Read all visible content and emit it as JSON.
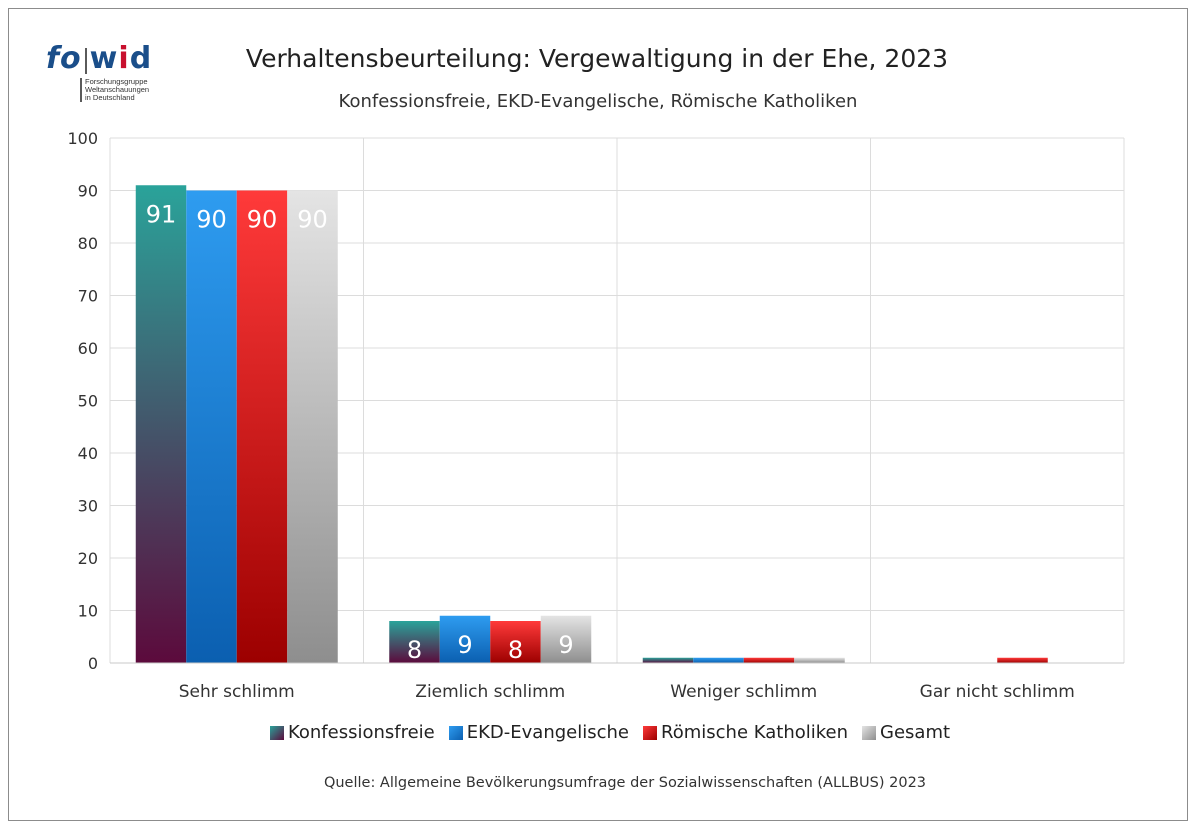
{
  "logo": {
    "wordmark_fo": "fo",
    "wordmark_w": "w",
    "wordmark_i": "i",
    "wordmark_d": "d",
    "tagline_1": "Forschungsgruppe",
    "tagline_2": "Weltanschauungen",
    "tagline_3": "in Deutschland"
  },
  "source_text": "Quelle: Allgemeine Bevölkerungsumfrage der Sozialwissenschaften (ALLBUS) 2023",
  "colors": {
    "konfessionsfreie_top": "#2aa39a",
    "konfessionsfreie_bottom": "#5c0a3c",
    "ekd_top": "#2e9cf0",
    "ekd_bottom": "#0b5fb0",
    "rk_top": "#ff3a3a",
    "rk_bottom": "#9c0000",
    "gesamt_top": "#e4e4e4",
    "gesamt_bottom": "#8e8e8e",
    "grid": "#dcdcdc"
  },
  "chart_data": {
    "type": "bar",
    "title": "Verhaltensbeurteilung: Vergewaltigung in der Ehe, 2023",
    "subtitle": "Konfessionsfreie, EKD-Evangelische, Römische Katholiken",
    "categories": [
      "Sehr schlimm",
      "Ziemlich schlimm",
      "Weniger schlimm",
      "Gar nicht schlimm"
    ],
    "series": [
      {
        "name": "Konfessionsfreie",
        "values": [
          91,
          8,
          1,
          0
        ],
        "labels": [
          "91",
          "8",
          "",
          ""
        ]
      },
      {
        "name": "EKD-Evangelische",
        "values": [
          90,
          9,
          1,
          0
        ],
        "labels": [
          "90",
          "9",
          "",
          ""
        ]
      },
      {
        "name": "Römische Katholiken",
        "values": [
          90,
          8,
          1,
          1
        ],
        "labels": [
          "90",
          "8",
          "",
          ""
        ]
      },
      {
        "name": "Gesamt",
        "values": [
          90,
          9,
          1,
          0
        ],
        "labels": [
          "90",
          "9",
          "",
          ""
        ]
      }
    ],
    "ylim": [
      0,
      100
    ],
    "yticks": [
      "0",
      "10",
      "20",
      "30",
      "40",
      "50",
      "60",
      "70",
      "80",
      "90",
      "100"
    ],
    "xlabel": "",
    "ylabel": "",
    "grid": true,
    "legend_position": "bottom"
  }
}
